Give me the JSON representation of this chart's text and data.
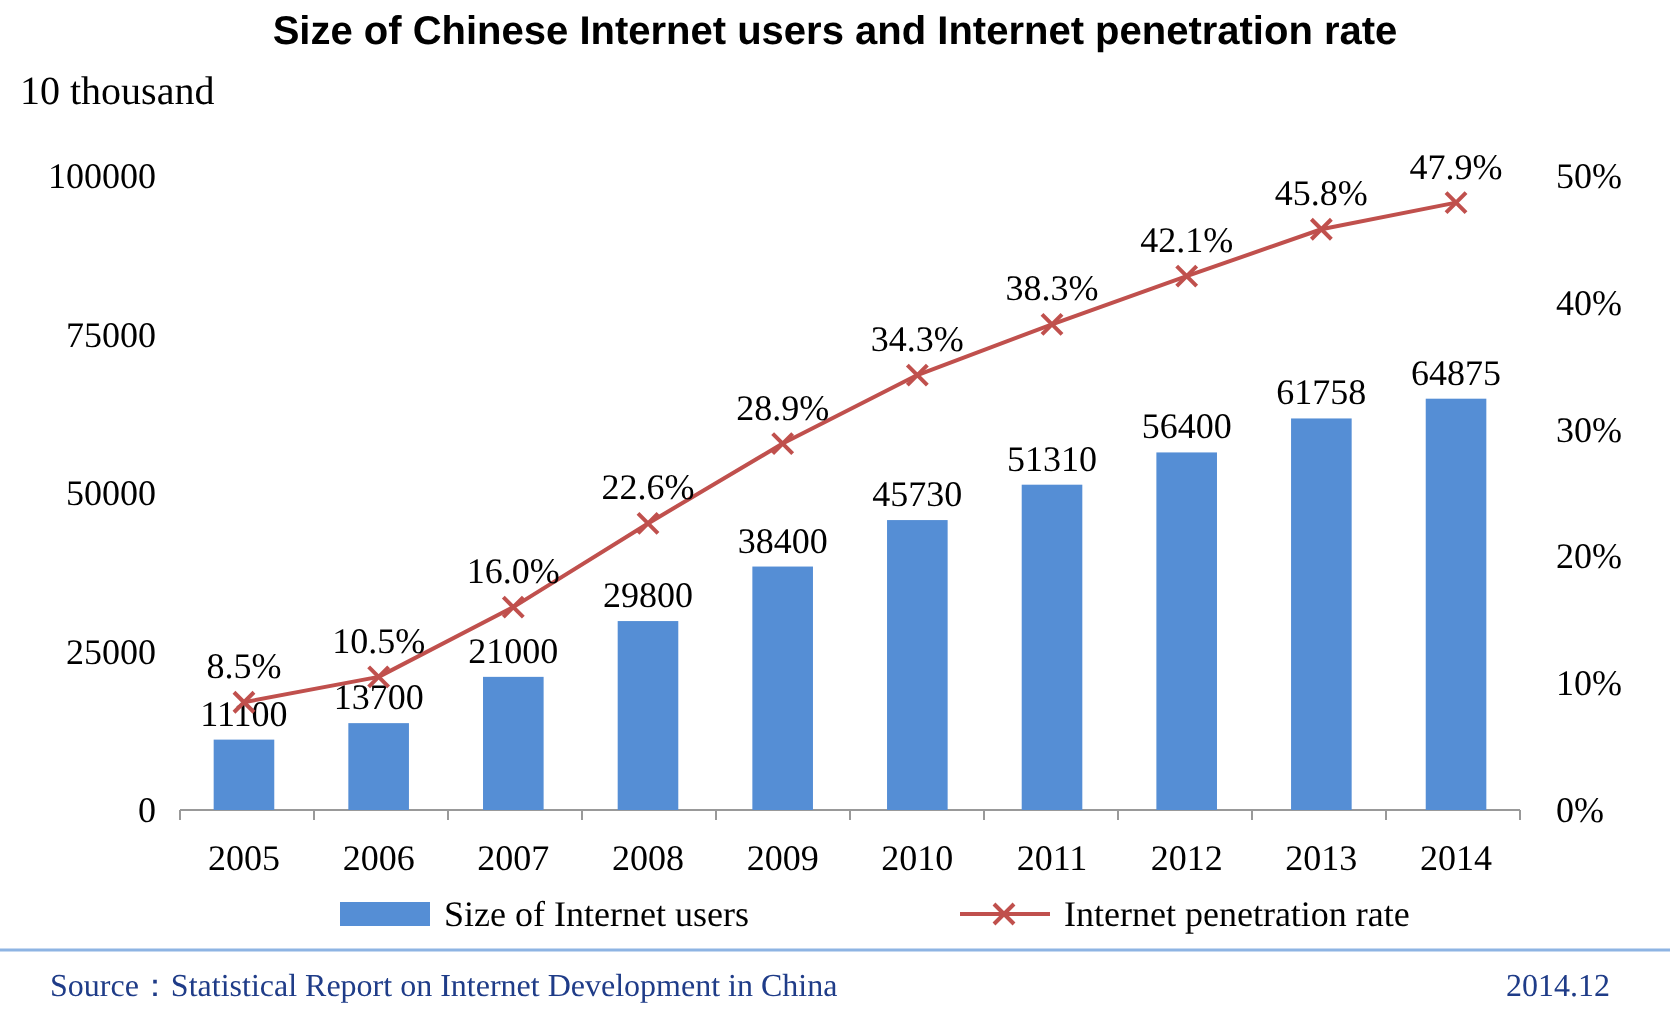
{
  "chart_data": {
    "type": "bar",
    "title": "Size of Chinese Internet users and Internet penetration rate",
    "ylabel": "10 thousand",
    "categories": [
      "2005",
      "2006",
      "2007",
      "2008",
      "2009",
      "2010",
      "2011",
      "2012",
      "2013",
      "2014"
    ],
    "series": [
      {
        "name": "Size of Internet users",
        "color": "#558ed5",
        "values": [
          11100,
          13700,
          21000,
          29800,
          38400,
          45730,
          51310,
          56400,
          61758,
          64875
        ],
        "value_labels": [
          "11100",
          "13700",
          "21000",
          "29800",
          "38400",
          "45730",
          "51310",
          "56400",
          "61758",
          "64875"
        ]
      },
      {
        "name": "Internet penetration rate",
        "type": "line",
        "axis": "y2",
        "color": "#c0504d",
        "marker": "cross",
        "values": [
          8.5,
          10.5,
          16.0,
          22.6,
          28.9,
          34.3,
          38.3,
          42.1,
          45.8,
          47.9
        ],
        "value_labels": [
          "8.5%",
          "10.5%",
          "16.0%",
          "22.6%",
          "28.9%",
          "34.3%",
          "38.3%",
          "42.1%",
          "45.8%",
          "47.9%"
        ]
      }
    ],
    "ylim": [
      0,
      100000
    ],
    "yticks": [
      0,
      25000,
      50000,
      75000,
      100000
    ],
    "y2lim": [
      0,
      50
    ],
    "y2ticks": [
      {
        "value": 0,
        "label": "0%"
      },
      {
        "value": 10,
        "label": "10%"
      },
      {
        "value": 20,
        "label": "20%"
      },
      {
        "value": 30,
        "label": "30%"
      },
      {
        "value": 40,
        "label": "40%"
      },
      {
        "value": 50,
        "label": "50%"
      }
    ],
    "legend": "bottom",
    "annotations": [
      "Source：Statistical Report on Internet Development in China",
      "2014.12"
    ]
  }
}
